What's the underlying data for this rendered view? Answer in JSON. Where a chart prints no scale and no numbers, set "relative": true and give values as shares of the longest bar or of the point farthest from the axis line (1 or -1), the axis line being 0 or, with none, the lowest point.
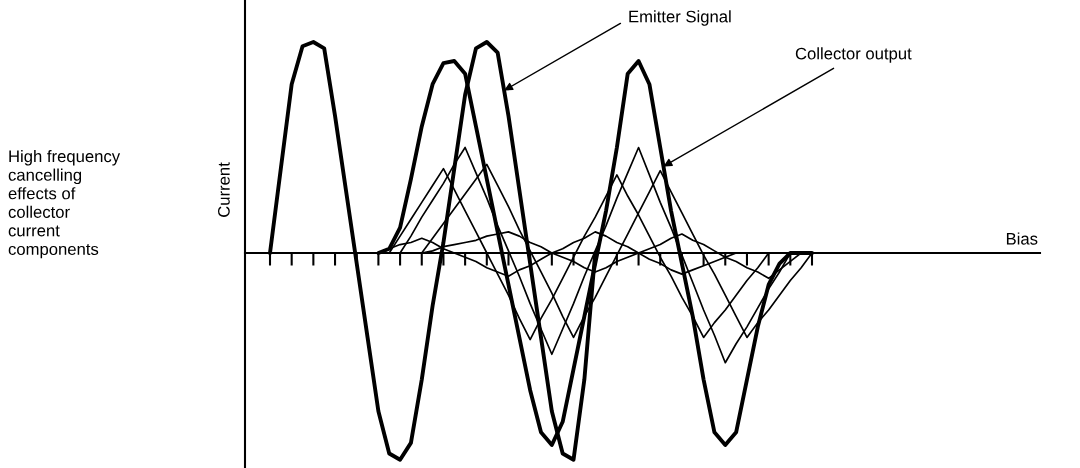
{
  "chart_data": {
    "type": "line",
    "relative": true,
    "legend": false,
    "marker": "none",
    "line_style": "solid",
    "grid": false,
    "ylabel": "Current",
    "annotations": [
      "High frequency\ncancelling\neffects of\ncollector\ncurrent\ncomponents",
      "Bias"
    ],
    "categories": [
      null,
      null,
      null,
      null,
      null,
      null,
      null,
      null,
      null,
      null,
      null,
      null,
      null,
      null,
      null,
      null,
      null,
      null,
      null,
      null,
      null,
      null,
      null,
      null,
      null,
      null,
      null,
      null,
      null,
      null,
      null,
      null,
      null,
      null,
      null,
      null,
      null,
      null,
      null,
      null,
      null,
      null,
      null,
      null,
      null,
      null,
      null,
      null,
      null,
      null,
      null
    ],
    "series": [
      {
        "name": "Emitter Signal",
        "color": "#000000",
        "values": [
          0,
          0.4,
          0.8,
          0.98,
          1,
          0.97,
          0.65,
          0.3,
          -0.05,
          -0.4,
          -0.75,
          -0.95,
          -0.98,
          -0.9,
          -0.6,
          -0.25,
          0.05,
          0.4,
          0.75,
          0.97,
          1,
          0.95,
          0.65,
          0.3,
          -0.05,
          -0.4,
          -0.75,
          -0.95,
          -0.98,
          -0.6,
          0,
          null,
          null,
          null,
          null,
          null,
          null,
          null,
          null,
          null,
          null,
          null,
          null,
          null,
          null,
          null,
          null,
          null,
          null,
          null,
          null
        ]
      },
      {
        "name": "Collector output",
        "color": "#000000",
        "values": [
          null,
          null,
          null,
          null,
          null,
          null,
          null,
          null,
          null,
          null,
          0,
          0.02,
          0.12,
          0.35,
          0.6,
          0.8,
          0.9,
          0.91,
          0.85,
          0.6,
          0.35,
          0.1,
          -0.15,
          -0.4,
          -0.65,
          -0.85,
          -0.91,
          -0.8,
          -0.55,
          -0.3,
          -0.05,
          0.2,
          0.5,
          0.85,
          0.91,
          0.8,
          0.5,
          0.2,
          -0.05,
          -0.3,
          -0.6,
          -0.85,
          -0.91,
          -0.85,
          -0.6,
          -0.35,
          -0.15,
          -0.05,
          0,
          0,
          0
        ]
      },
      {
        "color": "#000000",
        "values": [
          null,
          null,
          null,
          null,
          null,
          null,
          null,
          null,
          null,
          null,
          null,
          0,
          0.08,
          0.16,
          0.24,
          0.32,
          0.4,
          0.3,
          0.2,
          0.1,
          0,
          -0.1,
          -0.2,
          -0.31,
          -0.41,
          -0.31,
          -0.22,
          -0.12,
          -0.02,
          0.08,
          0.17,
          0.27,
          0.37,
          0.27,
          0.18,
          0.08,
          -0.02,
          -0.11,
          -0.21,
          -0.3,
          -0.4,
          -0.33,
          -0.27,
          -0.2,
          -0.13,
          -0.07,
          0,
          null,
          null,
          null,
          null
        ]
      },
      {
        "color": "#000000",
        "values": [
          null,
          null,
          null,
          null,
          null,
          null,
          null,
          null,
          null,
          null,
          null,
          null,
          0,
          0.08,
          0.17,
          0.25,
          0.33,
          0.42,
          0.5,
          0.38,
          0.26,
          0.13,
          0.01,
          -0.11,
          -0.24,
          -0.36,
          -0.48,
          -0.36,
          -0.24,
          -0.11,
          0.01,
          0.13,
          0.26,
          0.38,
          0.5,
          0.37,
          0.24,
          0.12,
          -0.01,
          -0.14,
          -0.27,
          -0.39,
          -0.52,
          -0.43,
          -0.35,
          -0.26,
          -0.17,
          -0.09,
          0,
          null,
          null
        ]
      },
      {
        "color": "#000000",
        "values": [
          null,
          null,
          null,
          null,
          null,
          null,
          null,
          null,
          null,
          null,
          null,
          null,
          null,
          null,
          0,
          0.07,
          0.14,
          0.21,
          0.28,
          0.35,
          0.42,
          0.32,
          0.22,
          0.11,
          0.01,
          -0.09,
          -0.19,
          -0.3,
          -0.4,
          -0.3,
          -0.21,
          -0.11,
          -0.01,
          0.09,
          0.19,
          0.29,
          0.39,
          0.29,
          0.19,
          0.09,
          -0.01,
          -0.1,
          -0.2,
          -0.3,
          -0.4,
          -0.33,
          -0.27,
          -0.2,
          -0.13,
          -0.07,
          0
        ]
      },
      {
        "color": "#000000",
        "values": [
          null,
          null,
          null,
          null,
          null,
          null,
          null,
          null,
          null,
          null,
          0,
          0.02,
          0.04,
          0.05,
          0.07,
          0.05,
          0.02,
          0,
          -0.02,
          -0.04,
          -0.07,
          -0.09,
          -0.11,
          -0.08,
          -0.06,
          -0.03,
          0,
          0.02,
          0.05,
          0.07,
          0.1,
          0.08,
          0.05,
          0.03,
          0,
          -0.03,
          -0.05,
          -0.08,
          -0.1,
          -0.08,
          -0.06,
          -0.04,
          -0.02,
          0,
          null,
          null,
          null,
          null,
          null,
          null,
          null
        ]
      },
      {
        "color": "#000000",
        "values": [
          null,
          null,
          null,
          null,
          null,
          null,
          null,
          null,
          null,
          null,
          null,
          null,
          null,
          null,
          0,
          0.01,
          0.03,
          0.04,
          0.05,
          0.06,
          0.08,
          0.09,
          0.1,
          0.08,
          0.05,
          0.03,
          0,
          -0.02,
          -0.04,
          -0.07,
          -0.09,
          -0.07,
          -0.04,
          -0.02,
          0,
          0.02,
          0.04,
          0.07,
          0.09,
          0.06,
          0.04,
          0.01,
          -0.02,
          -0.04,
          -0.07,
          -0.09,
          -0.12,
          -0.08,
          -0.04,
          0,
          null
        ]
      }
    ]
  }
}
